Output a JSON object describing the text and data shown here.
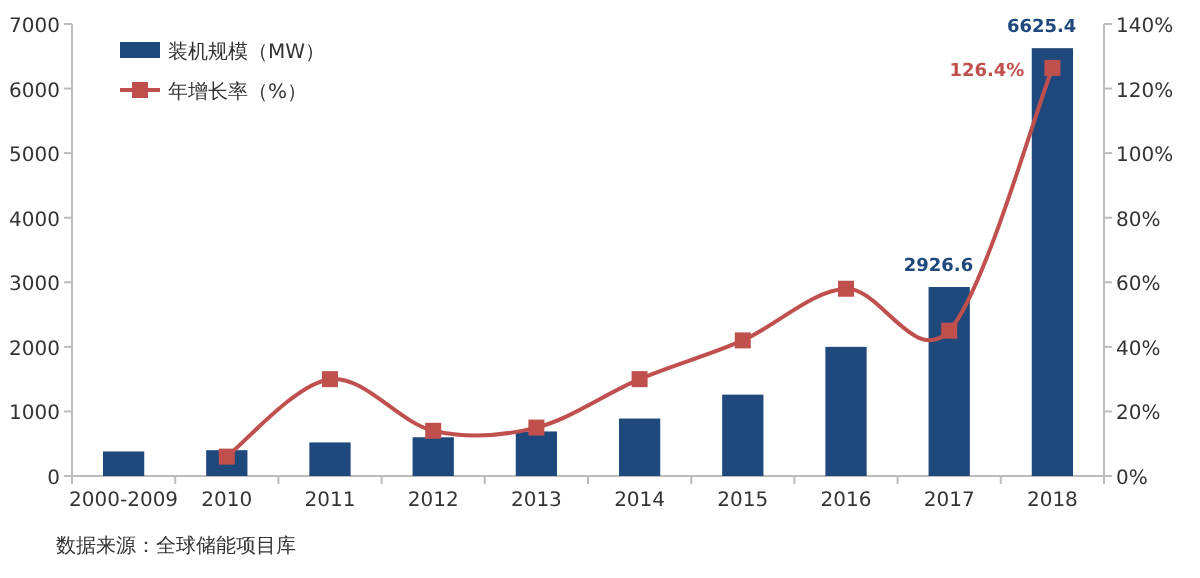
{
  "chart_data": {
    "type": "bar",
    "categories": [
      "2000-2009",
      "2010",
      "2011",
      "2012",
      "2013",
      "2014",
      "2015",
      "2016",
      "2017",
      "2018"
    ],
    "series": [
      {
        "name": "装机规模（MW）",
        "color": "#1f497d",
        "values": [
          380,
          400,
          520,
          600,
          690,
          890,
          1260,
          2000,
          2926.6,
          6625.4
        ],
        "value_labels": [
          null,
          null,
          null,
          null,
          null,
          null,
          null,
          null,
          "2926.6",
          "6625.4"
        ]
      },
      {
        "name": "年增长率（%）",
        "type": "line",
        "axis": "y2",
        "color": "#c0504d",
        "marker": "square",
        "values": [
          null,
          6,
          30,
          14,
          15,
          30,
          42,
          58,
          45,
          126.4
        ],
        "value_labels": [
          null,
          null,
          null,
          null,
          null,
          null,
          null,
          null,
          null,
          "126.4%"
        ]
      }
    ],
    "ylim": [
      0,
      7000
    ],
    "yticks": [
      0,
      1000,
      2000,
      3000,
      4000,
      5000,
      6000,
      7000
    ],
    "y2lim": [
      0,
      140
    ],
    "y2ticks": [
      {
        "value": 0,
        "label": "0%"
      },
      {
        "value": 20,
        "label": "20%"
      },
      {
        "value": 40,
        "label": "40%"
      },
      {
        "value": 60,
        "label": "60%"
      },
      {
        "value": 80,
        "label": "80%"
      },
      {
        "value": 100,
        "label": "100%"
      },
      {
        "value": 120,
        "label": "120%"
      },
      {
        "value": 140,
        "label": "140%"
      }
    ],
    "legend": "top left",
    "grid": false,
    "annotations": [
      "数据来源：全球储能项目库"
    ]
  }
}
